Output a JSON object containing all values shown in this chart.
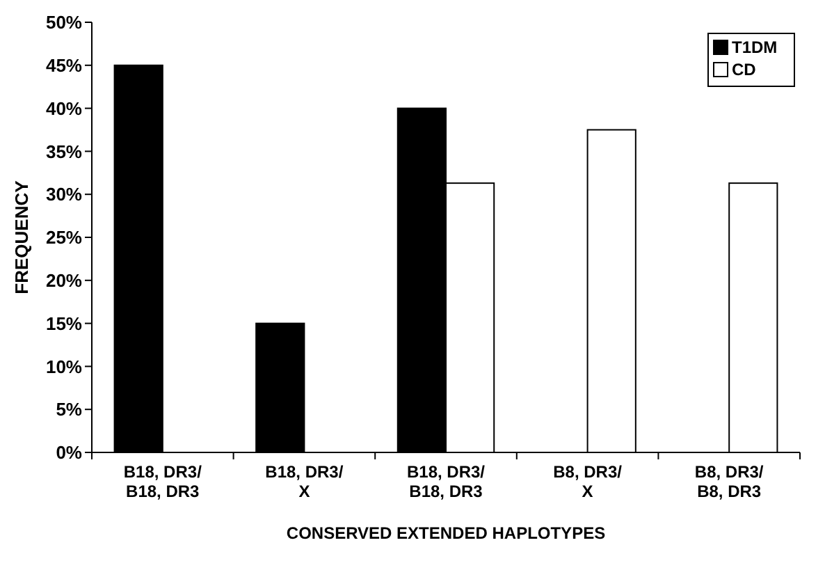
{
  "chart_data": {
    "type": "bar",
    "xlabel": "CONSERVED EXTENDED HAPLOTYPES",
    "ylabel": "FREQUENCY",
    "categories": [
      "B18, DR3/\nB18, DR3",
      "B18, DR3/\nX",
      "B18, DR3/\nB18, DR3",
      "B8, DR3/\nX",
      "B8, DR3/\nB8, DR3"
    ],
    "series": [
      {
        "name": "T1DM",
        "color": "#000000",
        "values": [
          45,
          15,
          40,
          null,
          null
        ]
      },
      {
        "name": "CD",
        "color": "#ffffff",
        "values": [
          null,
          null,
          31.3,
          37.5,
          31.3
        ]
      }
    ],
    "ylim": [
      0,
      50
    ],
    "yticks": [
      {
        "value": 0,
        "label": "0%"
      },
      {
        "value": 5,
        "label": "5%"
      },
      {
        "value": 10,
        "label": "10%"
      },
      {
        "value": 15,
        "label": "15%"
      },
      {
        "value": 20,
        "label": "20%"
      },
      {
        "value": 25,
        "label": "25%"
      },
      {
        "value": 30,
        "label": "30%"
      },
      {
        "value": 35,
        "label": "35%"
      },
      {
        "value": 40,
        "label": "40%"
      },
      {
        "value": 45,
        "label": "45%"
      },
      {
        "value": 50,
        "label": "50%"
      }
    ],
    "legend": "top right",
    "grid": false
  }
}
